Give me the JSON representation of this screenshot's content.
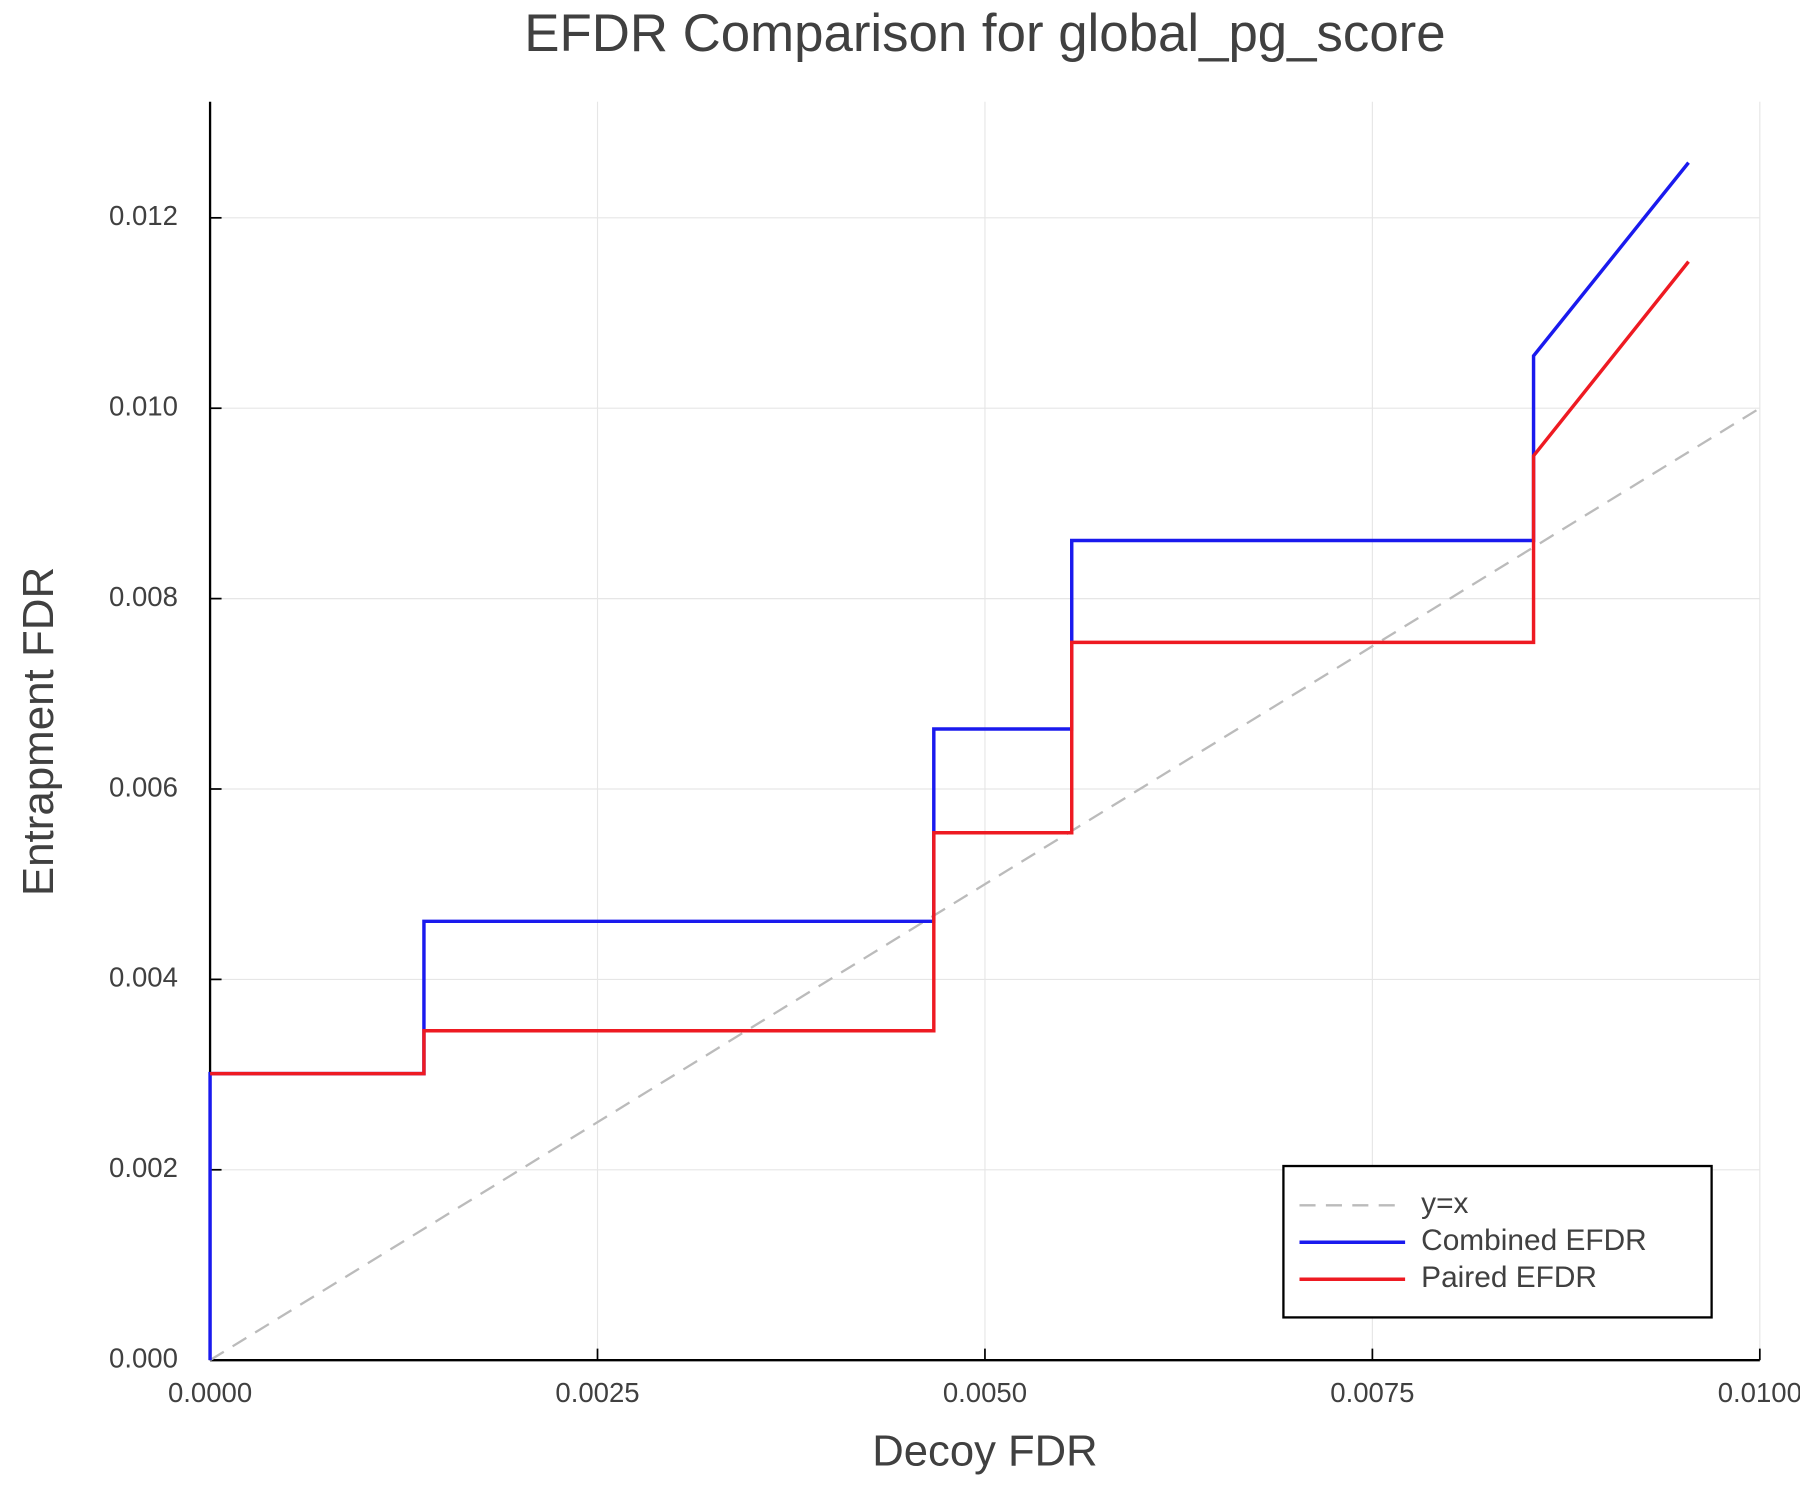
{
  "chart_data": {
    "type": "line",
    "title": "EFDR Comparison for global_pg_score",
    "x_label": "Decoy FDR",
    "y_label": "Entrapment FDR",
    "xlim": [
      0,
      0.01
    ],
    "ylim": [
      0,
      0.01322
    ],
    "xticks": [
      {
        "value": 0,
        "label": "0.0000"
      },
      {
        "value": 0.0025,
        "label": "0.0025"
      },
      {
        "value": 0.005,
        "label": "0.0050"
      },
      {
        "value": 0.0075,
        "label": "0.0075"
      },
      {
        "value": 0.01,
        "label": "0.0100"
      }
    ],
    "yticks": [
      {
        "value": 0,
        "label": "0.000"
      },
      {
        "value": 0.002,
        "label": "0.002"
      },
      {
        "value": 0.004,
        "label": "0.004"
      },
      {
        "value": 0.006,
        "label": "0.006"
      },
      {
        "value": 0.008,
        "label": "0.008"
      },
      {
        "value": 0.01,
        "label": "0.010"
      },
      {
        "value": 0.012,
        "label": "0.012"
      }
    ],
    "grid": true,
    "legend_position": "lower right",
    "series": [
      {
        "name": "y=x",
        "color": "#bbbbbb",
        "dashed": true,
        "x": [
          0,
          0.01
        ],
        "values": [
          0,
          0.01
        ]
      },
      {
        "name": "Combined EFDR",
        "color": "#1a1aee",
        "dashed": false,
        "x": [
          0,
          0,
          0.00138,
          0.00138,
          0.00467,
          0.00467,
          0.00556,
          0.00556,
          0.00854,
          0.00854,
          0.00954
        ],
        "values": [
          0,
          0.00301,
          0.00301,
          0.00461,
          0.00461,
          0.00663,
          0.00663,
          0.00861,
          0.00861,
          0.01055,
          0.01258
        ]
      },
      {
        "name": "Paired EFDR",
        "color": "#ee1a22",
        "dashed": false,
        "x": [
          0,
          0.00138,
          0.00138,
          0.00467,
          0.00467,
          0.00556,
          0.00556,
          0.00854,
          0.00854,
          0.00954
        ],
        "values": [
          0.00301,
          0.00301,
          0.00346,
          0.00346,
          0.00554,
          0.00554,
          0.00754,
          0.00754,
          0.0095,
          0.01154
        ]
      }
    ]
  }
}
